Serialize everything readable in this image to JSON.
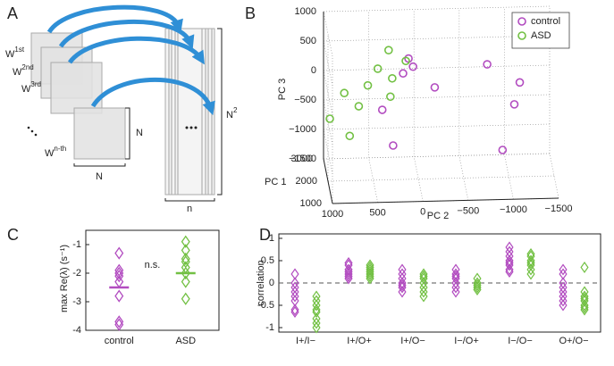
{
  "diagram": {
    "label": "A",
    "layers": [
      {
        "base": "W",
        "sup": "1st"
      },
      {
        "base": "W",
        "sup": "2nd"
      },
      {
        "base": "W",
        "sup": "3rd"
      },
      {
        "base": "W",
        "sup": "n-th"
      }
    ],
    "size_right": "N",
    "size_bottom": "N",
    "rows": {
      "base": "N",
      "sup": "2"
    },
    "cols": "n"
  },
  "chart_data": [
    {
      "type": "scatter3d",
      "label": "B",
      "xlabel": "PC 2",
      "ylabel": "PC 1",
      "zlabel": "PC 3",
      "xlim": [
        1000,
        -1500
      ],
      "xticks": [
        1000,
        500,
        0,
        {
          "value": -500,
          "label": "−500"
        },
        {
          "value": -1000,
          "label": "−1000"
        },
        {
          "value": -1500,
          "label": "−1500"
        }
      ],
      "ylim": [
        1000,
        3000
      ],
      "yticks": [
        1000,
        2000,
        3000
      ],
      "zlim": [
        -1500,
        1000
      ],
      "zticks": [
        {
          "value": -1500,
          "label": "−1500"
        },
        {
          "value": -1000,
          "label": "−1000"
        },
        {
          "value": -500,
          "label": "−500"
        },
        0,
        500,
        1000
      ],
      "grid": true,
      "legend": "upper right",
      "series": [
        {
          "name": "control",
          "color": "#b24cc0",
          "x": [
            110,
            60,
            170,
            -180,
            -760,
            -1120,
            -1060,
            400,
            280,
            -930
          ],
          "y": [
            2000,
            2000,
            2000,
            2000,
            2000,
            2000,
            2000,
            2000,
            2000,
            2000
          ],
          "z": [
            550,
            410,
            300,
            50,
            420,
            100,
            -270,
            -310,
            -920,
            -1040
          ]
        },
        {
          "name": "ASD",
          "color": "#72c043",
          "x": [
            330,
            140,
            450,
            290,
            560,
            820,
            310,
            660,
            980,
            760
          ],
          "y": [
            2000,
            2000,
            2000,
            2000,
            2000,
            2000,
            2000,
            2000,
            2000,
            2000
          ],
          "z": [
            700,
            510,
            390,
            220,
            110,
            -10,
            -90,
            -240,
            -440,
            -740
          ]
        }
      ]
    },
    {
      "type": "strip",
      "label": "C",
      "ylabel": "max Re(λ) (s⁻¹)",
      "annotation": "n.s.",
      "categories": [
        "control",
        "ASD"
      ],
      "colors": [
        "#b24cc0",
        "#72c043"
      ],
      "values": [
        [
          -1.3,
          -1.9,
          -2.0,
          -2.1,
          -2.3,
          -2.8,
          -3.7,
          -3.8
        ],
        [
          -0.9,
          -1.2,
          -1.5,
          -1.6,
          -1.8,
          -2.0,
          -2.3,
          -2.9
        ]
      ],
      "means": [
        -2.5,
        -2.0
      ],
      "ylim": [
        -4,
        -0.5
      ],
      "yticks": [
        -4,
        -3,
        -2,
        -1
      ]
    },
    {
      "type": "groupedstrip",
      "label": "D",
      "ylabel": "correlation",
      "categories": [
        "I+/I−",
        "I+/O+",
        "I+/O−",
        "I−/O+",
        "I−/O−",
        "O+/O−"
      ],
      "series": [
        {
          "color": "#b24cc0",
          "values": [
            [
              0.2,
              0,
              -0.1,
              -0.2,
              -0.3,
              -0.4,
              -0.6,
              -0.65
            ],
            [
              0.45,
              0.4,
              0.3,
              0.25,
              0.2,
              0.15,
              0.1
            ],
            [
              0.3,
              0.2,
              0.1,
              0,
              -0.05,
              -0.1,
              -0.2
            ],
            [
              0.3,
              0.2,
              0.15,
              0.1,
              0,
              -0.1,
              -0.2
            ],
            [
              0.8,
              0.7,
              0.6,
              0.5,
              0.45,
              0.4,
              0.3,
              0.25
            ],
            [
              0.3,
              0.2,
              0,
              -0.1,
              -0.2,
              -0.3,
              -0.4,
              -0.5
            ]
          ]
        },
        {
          "color": "#72c043",
          "values": [
            [
              -0.3,
              -0.4,
              -0.5,
              -0.6,
              -0.65,
              -0.8,
              -0.9,
              -1.0
            ],
            [
              0.4,
              0.35,
              0.3,
              0.25,
              0.2,
              0.15,
              0.1
            ],
            [
              0.2,
              0.15,
              0.1,
              0,
              -0.1,
              -0.2,
              -0.3
            ],
            [
              0.1,
              0,
              -0.05,
              -0.1,
              -0.15
            ],
            [
              0.65,
              0.6,
              0.5,
              0.45,
              0.4,
              0.3,
              0.2
            ],
            [
              0.35,
              -0.2,
              -0.3,
              -0.35,
              -0.4,
              -0.5,
              -0.55,
              -0.6
            ]
          ]
        }
      ],
      "refline": 0,
      "ylim": [
        -1.1,
        1.1
      ],
      "yticks": [
        -1,
        -0.5,
        0,
        0.5,
        1
      ]
    }
  ]
}
